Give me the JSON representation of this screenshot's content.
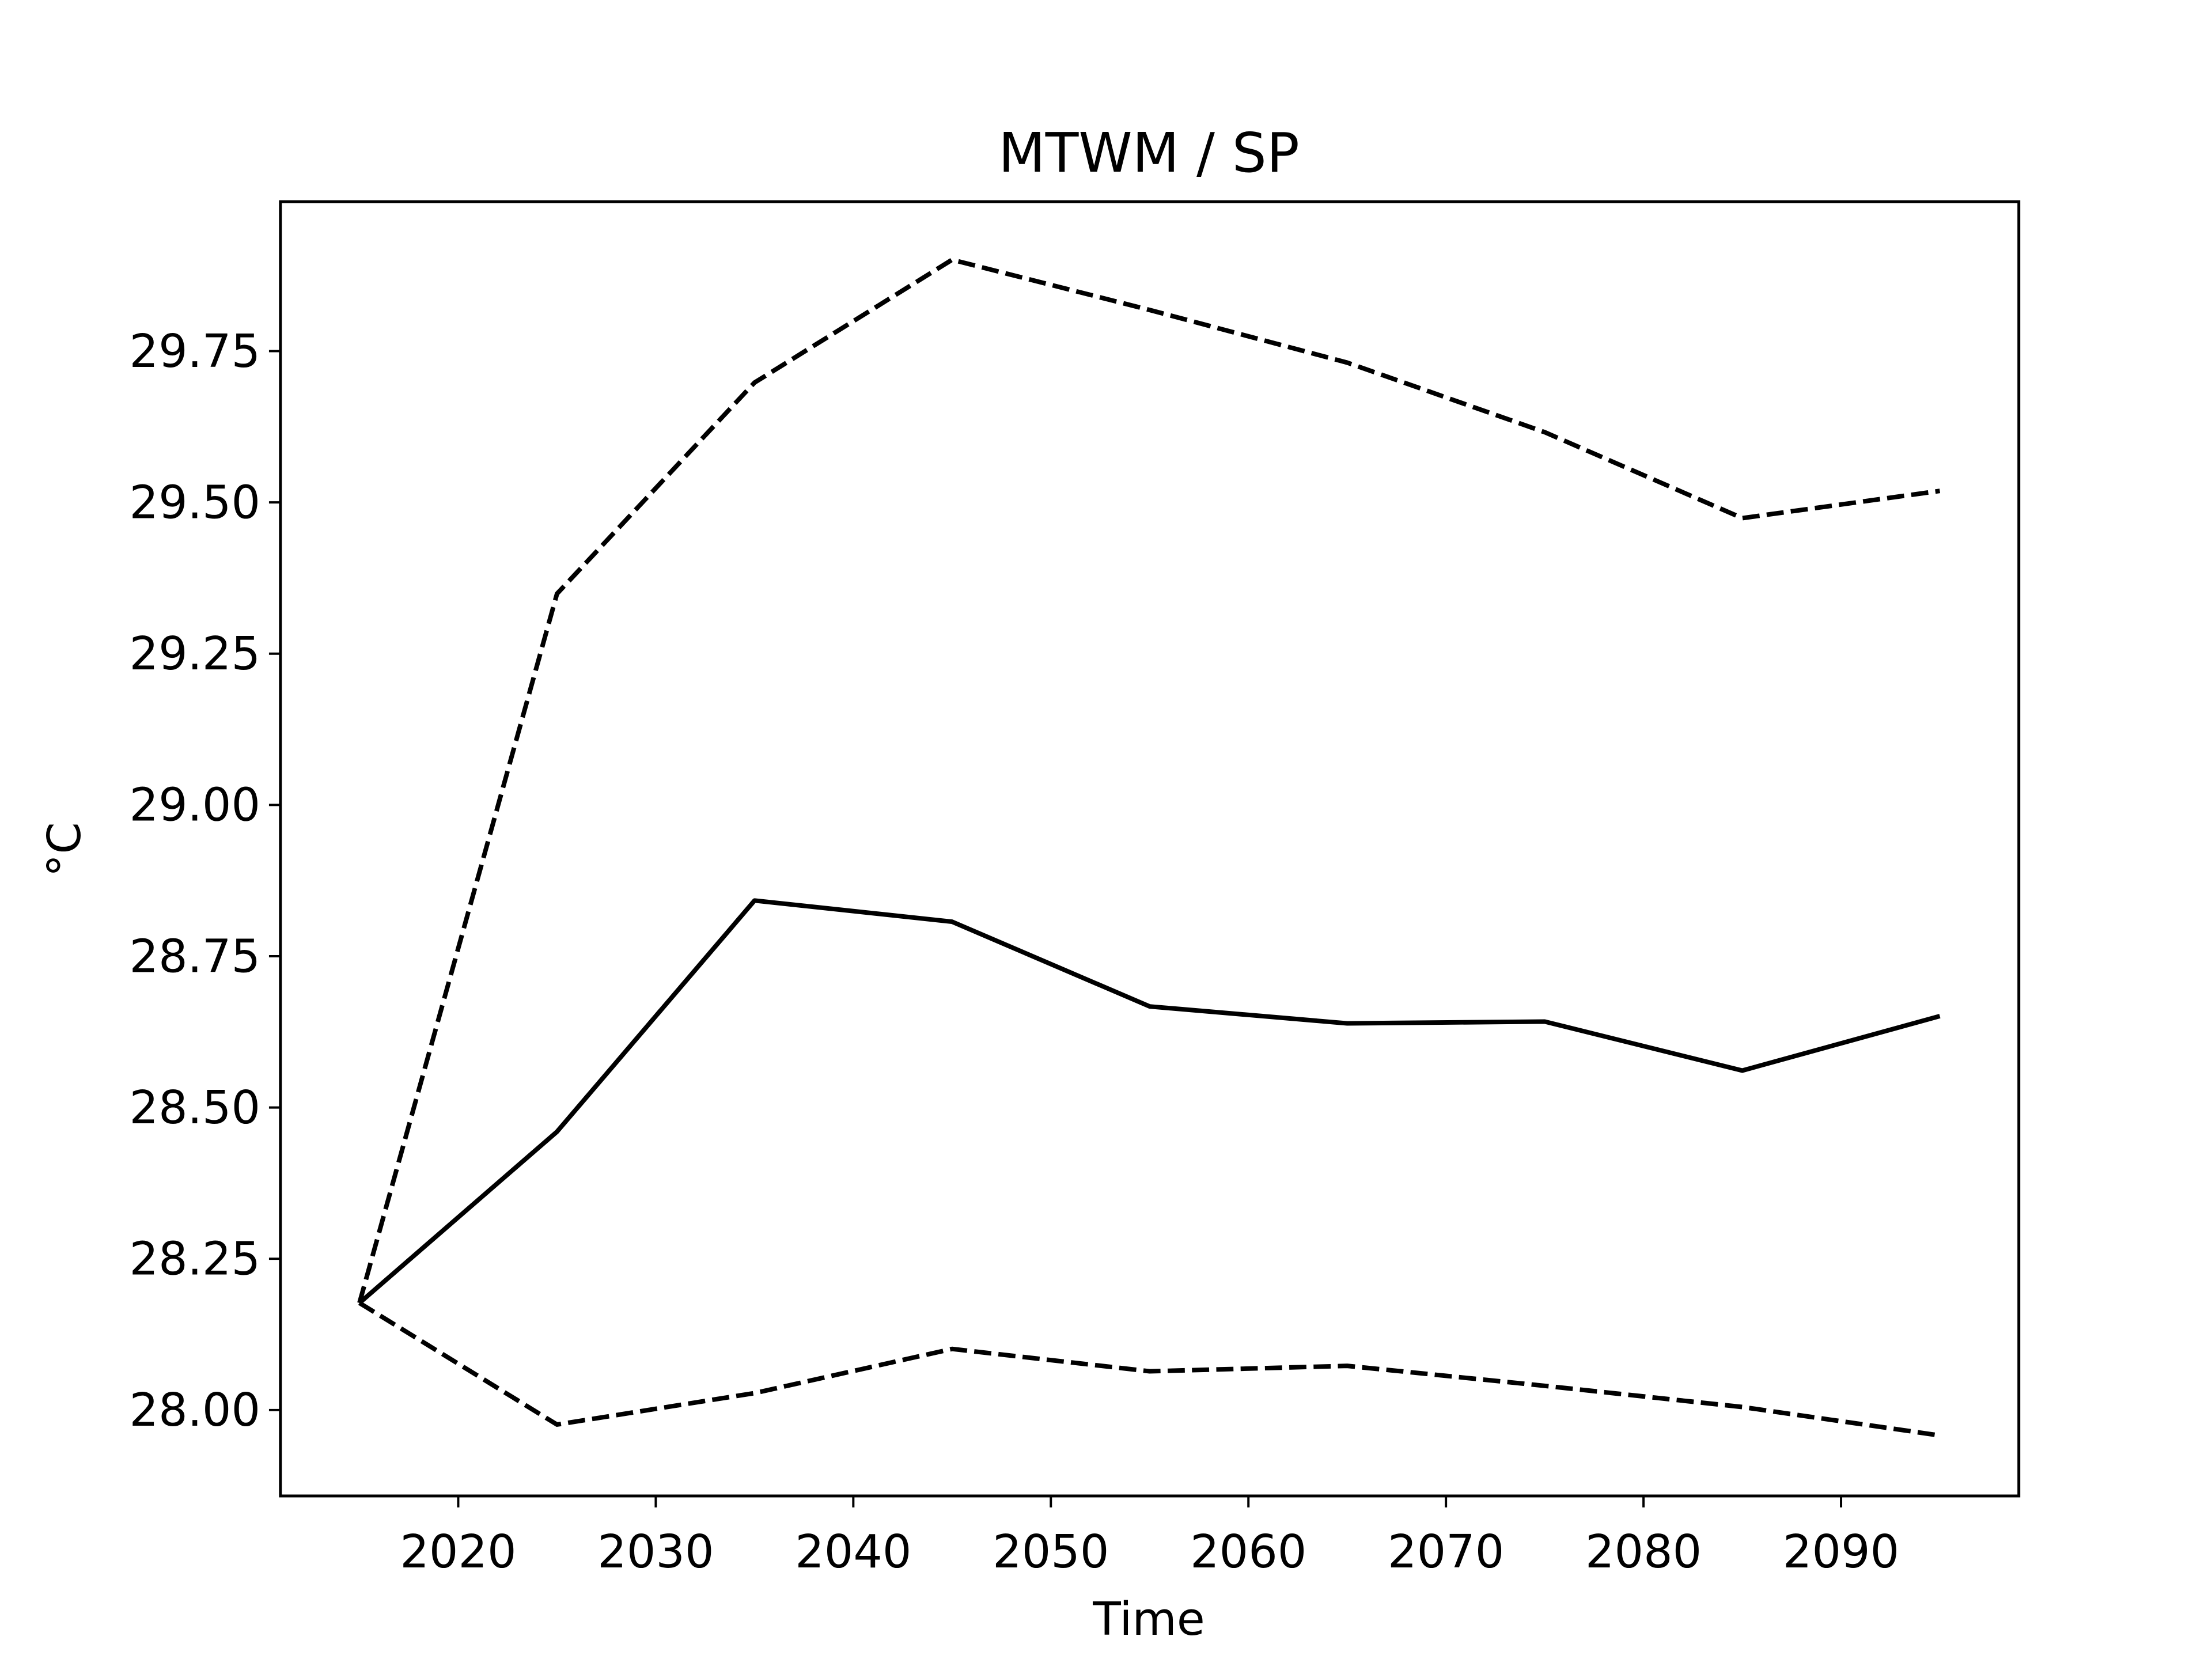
{
  "chart_data": {
    "type": "line",
    "title": "MTWM / SP",
    "xlabel": "Time",
    "ylabel": "°C",
    "x": [
      2015,
      2025,
      2035,
      2045,
      2055,
      2065,
      2075,
      2085,
      2095
    ],
    "series": [
      {
        "color": "#000000",
        "style": "solid",
        "values": [
          28.177,
          28.46,
          28.842,
          28.807,
          28.667,
          28.639,
          28.642,
          28.561,
          28.651
        ]
      },
      {
        "color": "#000000",
        "style": "dashed",
        "values": [
          28.177,
          29.349,
          29.698,
          29.901,
          29.818,
          29.731,
          29.616,
          29.474,
          29.519
        ]
      },
      {
        "color": "#000000",
        "style": "dashed",
        "values": [
          28.177,
          27.976,
          28.028,
          28.101,
          28.064,
          28.073,
          28.04,
          28.005,
          27.958
        ]
      }
    ],
    "xlim": [
      2011,
      2099
    ],
    "xticks": [
      2020,
      2030,
      2040,
      2050,
      2060,
      2070,
      2080,
      2090
    ],
    "ylim": [
      27.858,
      29.997
    ],
    "yticks": [
      {
        "value": 28.0,
        "label": "28.00"
      },
      28.25,
      {
        "value": 28.5,
        "label": "28.50"
      },
      28.75,
      {
        "value": 29.0,
        "label": "29.00"
      },
      29.25,
      {
        "value": 29.5,
        "label": "29.50"
      },
      29.75
    ],
    "grid": false
  }
}
